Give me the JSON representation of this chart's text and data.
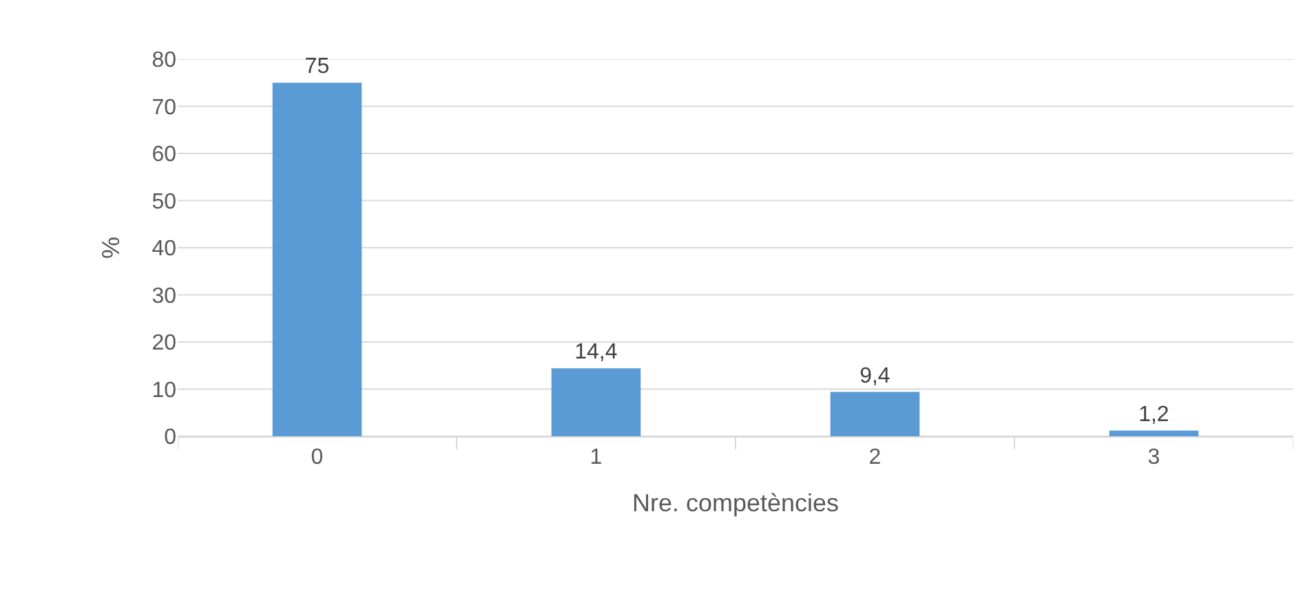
{
  "chart_data": {
    "type": "bar",
    "xlabel": "Nre. competències",
    "ylabel": "%",
    "categories": [
      "0",
      "1",
      "2",
      "3"
    ],
    "values": [
      75,
      14.4,
      9.4,
      1.2
    ],
    "value_labels": [
      "75",
      "14,4",
      "9,4",
      "1,2"
    ],
    "color": "#5b9bd5",
    "ylim": [
      0,
      80
    ],
    "yticks": [
      0,
      10,
      20,
      30,
      40,
      50,
      60,
      70,
      80
    ],
    "grid": "y"
  }
}
